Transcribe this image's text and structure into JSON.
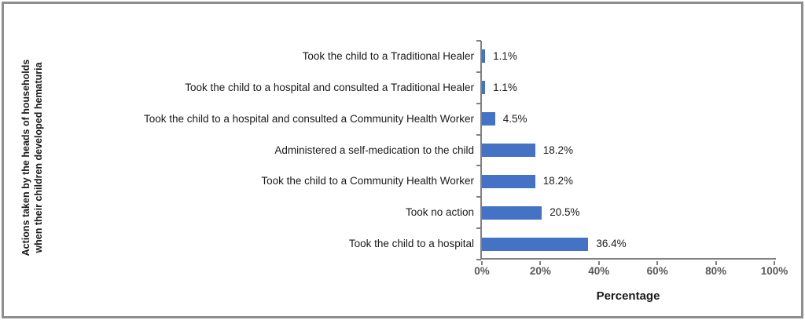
{
  "chart_data": {
    "type": "bar",
    "orientation": "horizontal",
    "title": "",
    "xlabel": "Percentage",
    "ylabel_lines": [
      "Actions taken by the heads of households",
      "when their children developed hematuria"
    ],
    "categories": [
      "Took the child to a Traditional Healer",
      "Took the child to a hospital and consulted a Traditional Healer",
      "Took the child to a hospital and consulted a Community Health Worker",
      "Administered a self-medication to the child",
      "Took the child to a Community Health Worker",
      "Took no action",
      "Took the child to a hospital"
    ],
    "values": [
      1.1,
      1.1,
      4.5,
      18.2,
      18.2,
      20.5,
      36.4
    ],
    "value_labels": [
      "1.1%",
      "1.1%",
      "4.5%",
      "18.2%",
      "18.2%",
      "20.5%",
      "36.4%"
    ],
    "xlim": [
      0,
      100
    ],
    "x_ticks": [
      0,
      20,
      40,
      60,
      80,
      100
    ],
    "x_tick_labels": [
      "0%",
      "20%",
      "40%",
      "60%",
      "80%",
      "100%"
    ],
    "grid": "off",
    "legend": "none",
    "bar_color": "#4472C4",
    "axis_color": "#808080",
    "tick_label_color": "#595959",
    "text_color": "#1a1a1a"
  }
}
